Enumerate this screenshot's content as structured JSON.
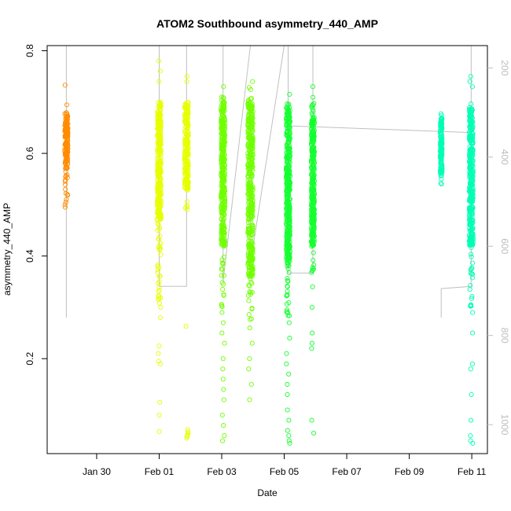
{
  "chart_data": {
    "type": "scatter",
    "title": "ATOM2 Southbound asymmetry_440_AMP",
    "xlabel": "Date",
    "ylabel": "asymmetry_440_AMP",
    "xlim": [
      "2023-01-28T10:00",
      "2023-02-11T12:00"
    ],
    "ylim": [
      0.015,
      0.81
    ],
    "y2lim": [
      1065,
      150
    ],
    "x_ticks": [
      "Jan 30",
      "Feb 01",
      "Feb 03",
      "Feb 05",
      "Feb 07",
      "Feb 09",
      "Feb 11"
    ],
    "x_tick_dates": [
      "2023-01-30",
      "2023-02-01",
      "2023-02-03",
      "2023-02-05",
      "2023-02-07",
      "2023-02-09",
      "2023-02-11"
    ],
    "y_ticks": [
      0.2,
      0.4,
      0.6,
      0.8
    ],
    "y_tick_labels": [
      "0.2",
      "0.4",
      "0.6",
      "0.8"
    ],
    "y2_ticks": [
      200,
      400,
      600,
      800,
      1000
    ],
    "y2_tick_labels": [
      "200",
      "400",
      "600",
      "800",
      "1000"
    ],
    "grid": false,
    "marker": "open circle",
    "series": [
      {
        "color": "#ff8c00",
        "clusters": [
          {
            "x": "2023-01-29T00:45",
            "width_h": 2.5,
            "dense": [
              0.57,
              0.68
            ],
            "sparse": [
              0.51,
              0.7
            ],
            "outliers": [
              0.733,
              0.53,
              0.52,
              0.51,
              0.505,
              0.5,
              0.495
            ]
          }
        ]
      },
      {
        "color": "#e6ff00",
        "clusters": [
          {
            "x": "2023-02-01T00:00",
            "width_h": 3,
            "dense": [
              0.47,
              0.7
            ],
            "sparse": [
              0.3,
              0.71
            ],
            "outliers": [
              0.78,
              0.76,
              0.74,
              0.45,
              0.42,
              0.38,
              0.35,
              0.3,
              0.28,
              0.225,
              0.21,
              0.195,
              0.19,
              0.115,
              0.09,
              0.058
            ]
          },
          {
            "x": "2023-02-01T21:00",
            "width_h": 3,
            "dense": [
              0.53,
              0.7
            ],
            "sparse": [
              0.49,
              0.72
            ],
            "outliers": [
              0.75,
              0.74,
              0.263,
              0.062,
              0.058,
              0.055,
              0.052,
              0.05,
              0.048,
              0.045
            ]
          }
        ]
      },
      {
        "color": "#70ff00",
        "clusters": [
          {
            "x": "2023-02-03T01:00",
            "width_h": 3,
            "dense": [
              0.42,
              0.7
            ],
            "sparse": [
              0.3,
              0.71
            ],
            "outliers": [
              0.73,
              0.29,
              0.27,
              0.25,
              0.23,
              0.2,
              0.18,
              0.16,
              0.14,
              0.12,
              0.09,
              0.07,
              0.05,
              0.04
            ]
          },
          {
            "x": "2023-02-03T22:00",
            "width_h": 4,
            "dense": [
              0.36,
              0.7
            ],
            "sparse": [
              0.27,
              0.73
            ],
            "outliers": [
              0.74,
              0.26,
              0.23,
              0.2,
              0.18,
              0.15,
              0.12
            ]
          }
        ]
      },
      {
        "color": "#14ff30",
        "clusters": [
          {
            "x": "2023-02-05T03:00",
            "width_h": 3,
            "dense": [
              0.38,
              0.69
            ],
            "sparse": [
              0.28,
              0.7
            ],
            "outliers": [
              0.715,
              0.27,
              0.24,
              0.21,
              0.19,
              0.17,
              0.15,
              0.13,
              0.1,
              0.08,
              0.06,
              0.05,
              0.04,
              0.035
            ]
          },
          {
            "x": "2023-02-05T22:00",
            "width_h": 2.5,
            "dense": [
              0.42,
              0.67
            ],
            "sparse": [
              0.36,
              0.71
            ],
            "outliers": [
              0.73,
              0.34,
              0.3,
              0.25,
              0.23,
              0.22,
              0.08,
              0.055
            ]
          }
        ]
      },
      {
        "color": "#00ffb4",
        "clusters": [
          {
            "x": "2023-02-10T00:30",
            "width_h": 1.5,
            "dense": [
              0.56,
              0.67
            ],
            "sparse": [
              0.54,
              0.68
            ],
            "outliers": [
              0.55,
              0.54
            ]
          },
          {
            "x": "2023-02-10T23:30",
            "width_h": 3,
            "dense": [
              0.42,
              0.69
            ],
            "sparse": [
              0.3,
              0.7
            ],
            "outliers": [
              0.75,
              0.74,
              0.73,
              0.29,
              0.25,
              0.19,
              0.18,
              0.13,
              0.08,
              0.05,
              0.04,
              0.035
            ]
          }
        ]
      }
    ],
    "depth_trace": {
      "color": "#c0c0c0",
      "segments": [
        [
          [
            "2023-01-29T00:45",
            150
          ],
          [
            "2023-01-29T00:45",
            760
          ],
          [
            "2023-01-29T00:45",
            150
          ]
        ],
        [
          [
            "2023-02-01T00:00",
            150
          ],
          [
            "2023-02-01T00:00",
            690
          ],
          [
            "2023-02-01T21:00",
            690
          ],
          [
            "2023-02-01T21:00",
            150
          ]
        ],
        [
          [
            "2023-02-03T01:00",
            150
          ],
          [
            "2023-02-03T01:00",
            680
          ],
          [
            "2023-02-03T22:00",
            150
          ]
        ],
        [
          [
            "2023-02-03T22:00",
            640
          ],
          [
            "2023-02-05T00:00",
            150
          ]
        ],
        [
          [
            "2023-02-05T03:00",
            150
          ],
          [
            "2023-02-05T03:00",
            660
          ],
          [
            "2023-02-05T22:00",
            660
          ],
          [
            "2023-02-05T22:00",
            150
          ]
        ],
        [
          [
            "2023-02-05T03:00",
            330
          ],
          [
            "2023-02-10T23:30",
            345
          ]
        ],
        [
          [
            "2023-02-10T00:30",
            760
          ],
          [
            "2023-02-10T00:30",
            695
          ],
          [
            "2023-02-10T23:30",
            690
          ],
          [
            "2023-02-10T23:30",
            150
          ]
        ]
      ]
    }
  }
}
